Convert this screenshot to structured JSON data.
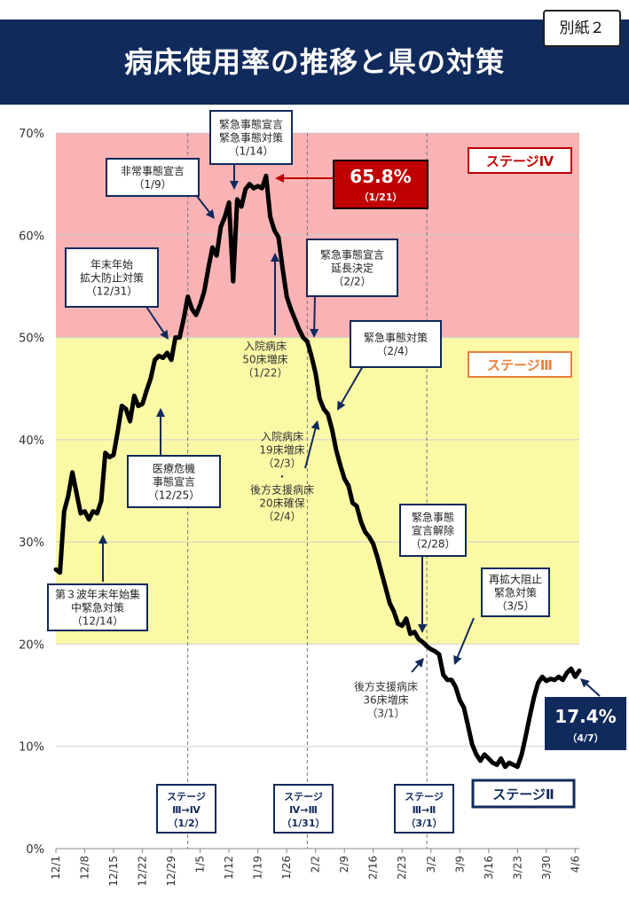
{
  "title": "病床使用率の推移と県の対策",
  "appendix_label": "別紙２",
  "colors": {
    "title_bar": "#102a5c",
    "stage4_band": "#f9b3b4",
    "stage3_band": "#fbf9a6",
    "line": "#000000",
    "peak_callout": "#c00000",
    "latest_callout": "#102a5c",
    "navy": "#102a5c",
    "stage3_label": "#e8803a",
    "stage4_label": "#c00000"
  },
  "chart_data": {
    "type": "line",
    "title": "病床使用率の推移と県の対策",
    "xlabel": "",
    "ylabel": "",
    "ylim": [
      0,
      70
    ],
    "y_ticks": [
      "0%",
      "10%",
      "20%",
      "30%",
      "40%",
      "50%",
      "60%",
      "70%"
    ],
    "x_ticks": [
      "12/1",
      "12/8",
      "12/15",
      "12/22",
      "12/29",
      "1/5",
      "1/12",
      "1/19",
      "1/26",
      "2/2",
      "2/9",
      "2/16",
      "2/23",
      "3/2",
      "3/9",
      "3/16",
      "3/23",
      "3/30",
      "4/6"
    ],
    "grid": true,
    "bands": [
      {
        "label": "ステージⅣ",
        "from": 50,
        "to": 70
      },
      {
        "label": "ステージⅢ",
        "from": 20,
        "to": 50
      }
    ],
    "stage2_label": "ステージⅡ",
    "series": [
      {
        "values": [
          {
            "x": "12/1",
            "y": 27.3
          },
          {
            "x": "12/2",
            "y": 27.0
          },
          {
            "x": "12/3",
            "y": 33.0
          },
          {
            "x": "12/4",
            "y": 34.5
          },
          {
            "x": "12/5",
            "y": 36.8
          },
          {
            "x": "12/6",
            "y": 34.8
          },
          {
            "x": "12/7",
            "y": 32.8
          },
          {
            "x": "12/8",
            "y": 33.0
          },
          {
            "x": "12/9",
            "y": 32.2
          },
          {
            "x": "12/10",
            "y": 33.0
          },
          {
            "x": "12/11",
            "y": 32.8
          },
          {
            "x": "12/12",
            "y": 34.0
          },
          {
            "x": "12/13",
            "y": 38.7
          },
          {
            "x": "12/14",
            "y": 38.3
          },
          {
            "x": "12/15",
            "y": 38.5
          },
          {
            "x": "12/16",
            "y": 40.8
          },
          {
            "x": "12/17",
            "y": 43.3
          },
          {
            "x": "12/18",
            "y": 43.0
          },
          {
            "x": "12/19",
            "y": 41.8
          },
          {
            "x": "12/20",
            "y": 44.3
          },
          {
            "x": "12/21",
            "y": 43.3
          },
          {
            "x": "12/22",
            "y": 43.5
          },
          {
            "x": "12/23",
            "y": 44.8
          },
          {
            "x": "12/24",
            "y": 46.0
          },
          {
            "x": "12/25",
            "y": 47.8
          },
          {
            "x": "12/26",
            "y": 48.2
          },
          {
            "x": "12/27",
            "y": 48.0
          },
          {
            "x": "12/28",
            "y": 48.5
          },
          {
            "x": "12/29",
            "y": 47.8
          },
          {
            "x": "12/30",
            "y": 50.0
          },
          {
            "x": "12/31",
            "y": 50.0
          },
          {
            "x": "1/1",
            "y": 51.8
          },
          {
            "x": "1/2",
            "y": 54.0
          },
          {
            "x": "1/3",
            "y": 52.8
          },
          {
            "x": "1/4",
            "y": 52.2
          },
          {
            "x": "1/5",
            "y": 53.2
          },
          {
            "x": "1/6",
            "y": 54.5
          },
          {
            "x": "1/7",
            "y": 56.8
          },
          {
            "x": "1/8",
            "y": 58.8
          },
          {
            "x": "1/9",
            "y": 58.0
          },
          {
            "x": "1/10",
            "y": 60.8
          },
          {
            "x": "1/11",
            "y": 61.8
          },
          {
            "x": "1/12",
            "y": 63.2
          },
          {
            "x": "1/13",
            "y": 55.5
          },
          {
            "x": "1/14",
            "y": 63.5
          },
          {
            "x": "1/15",
            "y": 62.8
          },
          {
            "x": "1/16",
            "y": 64.5
          },
          {
            "x": "1/17",
            "y": 65.0
          },
          {
            "x": "1/18",
            "y": 64.6
          },
          {
            "x": "1/19",
            "y": 64.8
          },
          {
            "x": "1/20",
            "y": 64.6
          },
          {
            "x": "1/21",
            "y": 65.8
          },
          {
            "x": "1/22",
            "y": 61.8
          },
          {
            "x": "1/23",
            "y": 60.5
          },
          {
            "x": "1/24",
            "y": 59.8
          },
          {
            "x": "1/25",
            "y": 56.8
          },
          {
            "x": "1/26",
            "y": 54.0
          },
          {
            "x": "1/27",
            "y": 52.8
          },
          {
            "x": "1/28",
            "y": 51.8
          },
          {
            "x": "1/29",
            "y": 50.8
          },
          {
            "x": "1/30",
            "y": 50.0
          },
          {
            "x": "1/31",
            "y": 49.6
          },
          {
            "x": "2/1",
            "y": 48.2
          },
          {
            "x": "2/2",
            "y": 46.5
          },
          {
            "x": "2/3",
            "y": 44.0
          },
          {
            "x": "2/4",
            "y": 43.0
          },
          {
            "x": "2/5",
            "y": 42.5
          },
          {
            "x": "2/6",
            "y": 41.0
          },
          {
            "x": "2/7",
            "y": 39.0
          },
          {
            "x": "2/8",
            "y": 37.5
          },
          {
            "x": "2/9",
            "y": 36.2
          },
          {
            "x": "2/10",
            "y": 35.5
          },
          {
            "x": "2/11",
            "y": 33.8
          },
          {
            "x": "2/12",
            "y": 33.5
          },
          {
            "x": "2/13",
            "y": 32.0
          },
          {
            "x": "2/14",
            "y": 31.0
          },
          {
            "x": "2/15",
            "y": 30.5
          },
          {
            "x": "2/16",
            "y": 29.8
          },
          {
            "x": "2/17",
            "y": 28.5
          },
          {
            "x": "2/18",
            "y": 27.0
          },
          {
            "x": "2/19",
            "y": 25.5
          },
          {
            "x": "2/20",
            "y": 24.0
          },
          {
            "x": "2/21",
            "y": 23.2
          },
          {
            "x": "2/22",
            "y": 22.0
          },
          {
            "x": "2/23",
            "y": 21.8
          },
          {
            "x": "2/24",
            "y": 22.5
          },
          {
            "x": "2/25",
            "y": 21.0
          },
          {
            "x": "2/26",
            "y": 21.2
          },
          {
            "x": "2/27",
            "y": 20.5
          },
          {
            "x": "2/28",
            "y": 20.2
          },
          {
            "x": "3/1",
            "y": 19.8
          },
          {
            "x": "3/2",
            "y": 19.5
          },
          {
            "x": "3/3",
            "y": 19.3
          },
          {
            "x": "3/4",
            "y": 19.0
          },
          {
            "x": "3/5",
            "y": 17.0
          },
          {
            "x": "3/6",
            "y": 16.5
          },
          {
            "x": "3/7",
            "y": 16.5
          },
          {
            "x": "3/8",
            "y": 15.8
          },
          {
            "x": "3/9",
            "y": 14.5
          },
          {
            "x": "3/10",
            "y": 13.8
          },
          {
            "x": "3/11",
            "y": 12.0
          },
          {
            "x": "3/12",
            "y": 10.2
          },
          {
            "x": "3/13",
            "y": 9.2
          },
          {
            "x": "3/14",
            "y": 8.6
          },
          {
            "x": "3/15",
            "y": 9.2
          },
          {
            "x": "3/16",
            "y": 8.8
          },
          {
            "x": "3/17",
            "y": 8.4
          },
          {
            "x": "3/18",
            "y": 8.2
          },
          {
            "x": "3/19",
            "y": 8.8
          },
          {
            "x": "3/20",
            "y": 8.0
          },
          {
            "x": "3/21",
            "y": 8.4
          },
          {
            "x": "3/22",
            "y": 8.2
          },
          {
            "x": "3/23",
            "y": 8.0
          },
          {
            "x": "3/24",
            "y": 9.2
          },
          {
            "x": "3/25",
            "y": 11.0
          },
          {
            "x": "3/26",
            "y": 13.0
          },
          {
            "x": "3/27",
            "y": 14.8
          },
          {
            "x": "3/28",
            "y": 16.2
          },
          {
            "x": "3/29",
            "y": 16.8
          },
          {
            "x": "3/30",
            "y": 16.4
          },
          {
            "x": "3/31",
            "y": 16.6
          },
          {
            "x": "4/1",
            "y": 16.5
          },
          {
            "x": "4/2",
            "y": 16.8
          },
          {
            "x": "4/3",
            "y": 16.5
          },
          {
            "x": "4/4",
            "y": 17.2
          },
          {
            "x": "4/5",
            "y": 17.6
          },
          {
            "x": "4/6",
            "y": 16.8
          },
          {
            "x": "4/7",
            "y": 17.4
          }
        ]
      }
    ],
    "peak": {
      "value": "65.8%",
      "date": "（1/21）"
    },
    "latest": {
      "value": "17.4%",
      "date": "（4/7）"
    },
    "stage_transitions": [
      {
        "date": "1/2",
        "line1": "ステージ",
        "line2": "Ⅲ→Ⅳ",
        "line3": "（1/2）"
      },
      {
        "date": "1/31",
        "line1": "ステージ",
        "line2": "Ⅳ→Ⅲ",
        "line3": "（1/31）"
      },
      {
        "date": "3/1",
        "line1": "ステージ",
        "line2": "Ⅲ→Ⅱ",
        "line3": "（3/1）"
      }
    ],
    "annotations": [
      {
        "id": "ann-1214",
        "lines": [
          "第３波年末年始集",
          "中緊急対策",
          "（12/14）"
        ],
        "boxed": true
      },
      {
        "id": "ann-1225",
        "lines": [
          "医療危機",
          "事態宣言",
          "（12/25）"
        ],
        "boxed": true
      },
      {
        "id": "ann-1231",
        "lines": [
          "年末年始",
          "拡大防止対策",
          "（12/31）"
        ],
        "boxed": true
      },
      {
        "id": "ann-0109",
        "lines": [
          "非常事態宣言",
          "（1/9）"
        ],
        "boxed": true
      },
      {
        "id": "ann-0114",
        "lines": [
          "緊急事態宣言",
          "緊急事態対策",
          "（1/14）"
        ],
        "boxed": true
      },
      {
        "id": "ann-0122",
        "lines": [
          "入院病床",
          "50床増床",
          "（1/22）"
        ],
        "boxed": false
      },
      {
        "id": "ann-0202",
        "lines": [
          "緊急事態宣言",
          "延長決定",
          "（2/2）"
        ],
        "boxed": true
      },
      {
        "id": "ann-0204",
        "lines": [
          "緊急事態対策",
          "（2/4）"
        ],
        "boxed": true
      },
      {
        "id": "ann-0203",
        "lines": [
          "入院病床",
          "19床増床",
          "（2/3）",
          "・",
          "後方支援病床",
          "20床確保",
          "（2/4）"
        ],
        "boxed": false
      },
      {
        "id": "ann-0228",
        "lines": [
          "緊急事態",
          "宣言解除",
          "（2/28）"
        ],
        "boxed": true
      },
      {
        "id": "ann-0301",
        "lines": [
          "後方支援病床",
          "36床増床",
          "（3/1）"
        ],
        "boxed": false
      },
      {
        "id": "ann-0305",
        "lines": [
          "再拡大阻止",
          "緊急対策",
          "（3/5）"
        ],
        "boxed": true
      }
    ]
  }
}
